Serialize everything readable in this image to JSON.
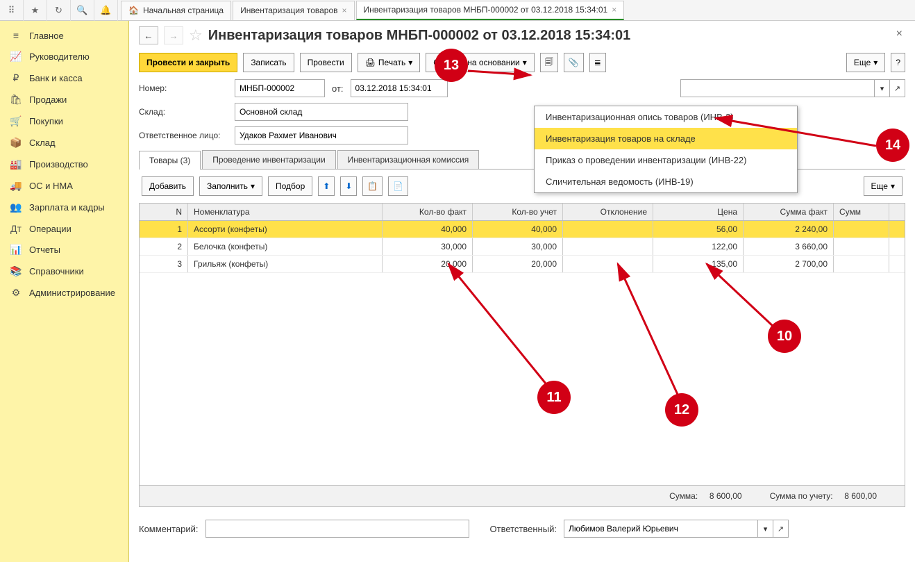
{
  "toolbar_icons": [
    "grid",
    "star",
    "history",
    "search",
    "bell"
  ],
  "tabs": [
    {
      "icon": "home",
      "label": "Начальная страница",
      "closable": false
    },
    {
      "icon": "",
      "label": "Инвентаризация товаров",
      "closable": true
    },
    {
      "icon": "",
      "label": "Инвентаризация товаров МНБП-000002 от 03.12.2018 15:34:01",
      "closable": true,
      "active": true
    }
  ],
  "sidebar": [
    {
      "icon": "≡",
      "label": "Главное"
    },
    {
      "icon": "📈",
      "label": "Руководителю"
    },
    {
      "icon": "₽",
      "label": "Банк и касса"
    },
    {
      "icon": "🛍",
      "label": "Продажи"
    },
    {
      "icon": "🛒",
      "label": "Покупки"
    },
    {
      "icon": "📦",
      "label": "Склад"
    },
    {
      "icon": "🏭",
      "label": "Производство"
    },
    {
      "icon": "🚚",
      "label": "ОС и НМА"
    },
    {
      "icon": "👥",
      "label": "Зарплата и кадры"
    },
    {
      "icon": "Дт",
      "label": "Операции"
    },
    {
      "icon": "📊",
      "label": "Отчеты"
    },
    {
      "icon": "📚",
      "label": "Справочники"
    },
    {
      "icon": "⚙",
      "label": "Администрирование"
    }
  ],
  "header": {
    "title": "Инвентаризация товаров МНБП-000002 от 03.12.2018 15:34:01"
  },
  "buttons": {
    "post_close": "Провести и закрыть",
    "write": "Записать",
    "post": "Провести",
    "print": "Печать",
    "create_based": "Создать на основании",
    "more": "Еще"
  },
  "form": {
    "number_label": "Номер:",
    "number_value": "МНБП-000002",
    "from_label": "от:",
    "date_value": "03.12.2018 15:34:01",
    "sklad_label": "Склад:",
    "sklad_value": "Основной склад",
    "resp_label": "Ответственное лицо:",
    "resp_value": "Удаков Рахмет Иванович"
  },
  "tabs2": [
    {
      "label": "Товары (3)",
      "active": true
    },
    {
      "label": "Проведение инвентаризации"
    },
    {
      "label": "Инвентаризационная комиссия"
    }
  ],
  "grid_buttons": {
    "add": "Добавить",
    "fill": "Заполнить",
    "pick": "Подбор",
    "more": "Еще"
  },
  "columns": {
    "n": "N",
    "nom": "Номенклатура",
    "fact": "Кол-во факт",
    "uch": "Кол-во учет",
    "otk": "Отклонение",
    "price": "Цена",
    "sumf": "Сумма факт",
    "summ": "Сумм"
  },
  "rows": [
    {
      "n": "1",
      "nom": "Ассорти (конфеты)",
      "fact": "40,000",
      "uch": "40,000",
      "otk": "",
      "price": "56,00",
      "sumf": "2 240,00",
      "sel": true
    },
    {
      "n": "2",
      "nom": "Белочка (конфеты)",
      "fact": "30,000",
      "uch": "30,000",
      "otk": "",
      "price": "122,00",
      "sumf": "3 660,00"
    },
    {
      "n": "3",
      "nom": "Грильяж (конфеты)",
      "fact": "20,000",
      "uch": "20,000",
      "otk": "",
      "price": "135,00",
      "sumf": "2 700,00"
    }
  ],
  "footer": {
    "sum_label": "Сумма:",
    "sum_value": "8 600,00",
    "sum_uch_label": "Сумма по учету:",
    "sum_uch_value": "8 600,00"
  },
  "bottom": {
    "comment_label": "Комментарий:",
    "comment_value": "",
    "resp_label": "Ответственный:",
    "resp_value": "Любимов Валерий Юрьевич"
  },
  "dropdown": [
    {
      "label": "Инвентаризационная опись товаров (ИНВ-3)"
    },
    {
      "label": "Инвентаризация товаров на складе",
      "hi": true
    },
    {
      "label": "Приказ о проведении инвентаризации (ИНВ-22)"
    },
    {
      "label": "Сличительная ведомость (ИНВ-19)"
    }
  ],
  "annotations": {
    "a10": "10",
    "a11": "11",
    "a12": "12",
    "a13": "13",
    "a14": "14"
  },
  "colors": {
    "red": "#d10015",
    "yellow_sidebar": "#fef4a8",
    "yellow_btn": "#ffd83a",
    "yellow_row": "#ffe14a"
  }
}
